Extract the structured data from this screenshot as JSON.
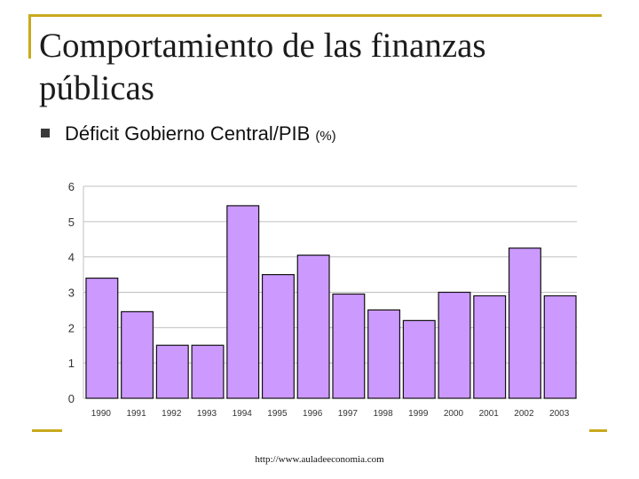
{
  "slide": {
    "title": "Comportamiento de las finanzas públicas",
    "bullet_text": "Déficit Gobierno Central/PIB",
    "bullet_unit": "(%)",
    "footer_url": "http://www.auladeeconomia.com"
  },
  "colors": {
    "bar_fill": "#cc99ff",
    "bar_stroke": "#111111",
    "grid": "#c0c0c0",
    "accent": "#c8aa1e"
  },
  "chart_data": {
    "type": "bar",
    "title": "",
    "xlabel": "",
    "ylabel": "",
    "categories": [
      "1990",
      "1991",
      "1992",
      "1993",
      "1994",
      "1995",
      "1996",
      "1997",
      "1998",
      "1999",
      "2000",
      "2001",
      "2002",
      "2003"
    ],
    "values": [
      3.4,
      2.45,
      1.5,
      1.5,
      5.45,
      3.5,
      4.05,
      2.95,
      2.5,
      2.2,
      3.0,
      2.9,
      4.25,
      2.9
    ],
    "ylim": [
      0,
      6
    ],
    "yticks": [
      "0",
      "1",
      "2",
      "3",
      "4",
      "5",
      "6"
    ],
    "grid": true
  }
}
